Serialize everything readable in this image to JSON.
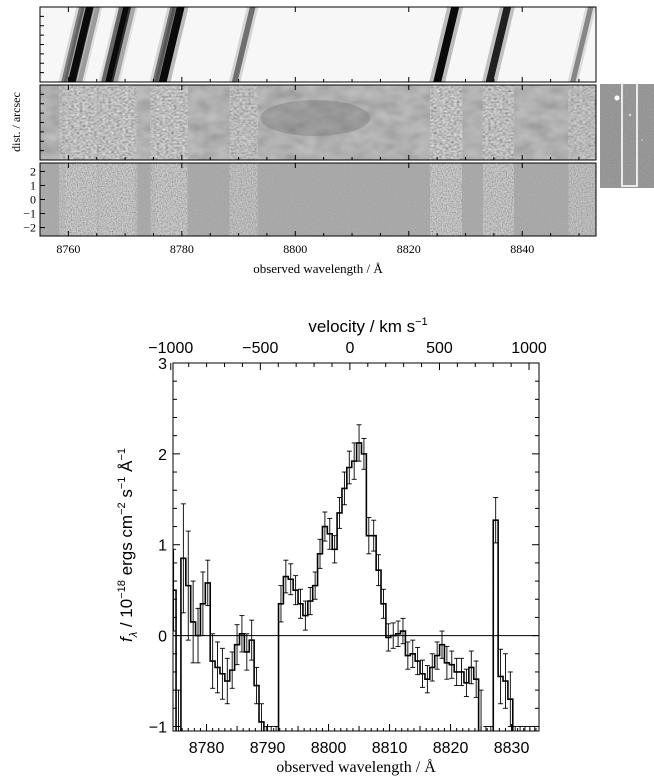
{
  "top_panel": {
    "ylabel": "dist. / arcsec",
    "xlabel": "observed wavelength / Å",
    "x_ticks": [
      8760,
      8780,
      8800,
      8820,
      8840
    ],
    "xlim": [
      8755,
      8853
    ],
    "residual_y_ticks": [
      2,
      1,
      0,
      -1,
      -2
    ],
    "residual_ylim": [
      -2.6,
      2.6
    ],
    "sky_lines": [
      {
        "center": 8760.8,
        "strength": 0.5
      },
      {
        "center": 8762.2,
        "strength": 1.0
      },
      {
        "center": 8763.6,
        "strength": 0.35
      },
      {
        "center": 8767.8,
        "strength": 0.45
      },
      {
        "center": 8768.8,
        "strength": 1.0
      },
      {
        "center": 8769.9,
        "strength": 0.3
      },
      {
        "center": 8776.9,
        "strength": 0.55
      },
      {
        "center": 8778.2,
        "strength": 1.0
      },
      {
        "center": 8790.9,
        "strength": 0.55
      },
      {
        "center": 8826.6,
        "strength": 1.0
      },
      {
        "center": 8835.8,
        "strength": 0.9
      },
      {
        "center": 8850.5,
        "strength": 0.45
      }
    ]
  },
  "chart_data": {
    "type": "line",
    "style": "step",
    "xlabel": "observed wavelength / Å",
    "ylabel_parts": {
      "f": "f",
      "sub": "λ",
      "rest": " / 10",
      "exp1": "−18",
      "mid": " ergs cm",
      "exp2": "−2",
      "mid2": " s",
      "exp3": "−1",
      "mid3": " Å",
      "exp4": "−1"
    },
    "top_xlabel_parts": {
      "text": "velocity / km s",
      "exp": "−1"
    },
    "xlim": [
      8774.5,
      8834.5
    ],
    "ylim": [
      -1.05,
      3.0
    ],
    "x_ticks": [
      8780,
      8790,
      8800,
      8810,
      8820,
      8830
    ],
    "y_ticks": [
      -1,
      0,
      1,
      2,
      3
    ],
    "velocity_ticks": [
      -1000,
      -500,
      0,
      500,
      1000
    ],
    "velocity_tick_labels": [
      "−1000",
      "−500",
      "0",
      "500",
      "1000"
    ],
    "velocity_reference_wavelength": 8803.5,
    "zero_line": 0,
    "x": [
      8774.6,
      8775.4,
      8776.2,
      8777.0,
      8777.8,
      8778.6,
      8779.4,
      8780.2,
      8781.0,
      8781.8,
      8782.6,
      8783.4,
      8784.2,
      8785.0,
      8785.8,
      8786.6,
      8787.4,
      8788.2,
      8789.0,
      8789.8,
      8790.6,
      8791.4,
      8792.2,
      8793.0,
      8793.8,
      8794.6,
      8795.4,
      8796.2,
      8797.0,
      8797.8,
      8798.6,
      8799.4,
      8800.2,
      8801.0,
      8801.8,
      8802.6,
      8803.4,
      8804.2,
      8805.0,
      8805.8,
      8806.6,
      8807.4,
      8808.2,
      8809.0,
      8809.8,
      8810.6,
      8811.4,
      8812.2,
      8813.0,
      8813.8,
      8814.6,
      8815.4,
      8816.2,
      8817.0,
      8817.8,
      8818.6,
      8819.4,
      8820.2,
      8821.0,
      8821.8,
      8822.6,
      8823.4,
      8824.2,
      8825.0,
      8825.8,
      8826.6,
      8827.4,
      8828.2,
      8829.0,
      8829.8,
      8830.6,
      8831.4,
      8832.2,
      8833.0,
      8833.8
    ],
    "y": [
      0.5,
      -1.1,
      0.85,
      0.55,
      0.15,
      0.0,
      0.35,
      0.58,
      -0.28,
      -0.35,
      -0.42,
      -0.5,
      -0.38,
      -0.1,
      0.02,
      -0.18,
      -0.05,
      -0.55,
      -0.95,
      -1.1,
      -1.1,
      -1.1,
      0.35,
      0.65,
      0.62,
      0.5,
      0.35,
      0.22,
      0.38,
      0.55,
      0.9,
      1.2,
      1.12,
      0.95,
      1.35,
      1.62,
      1.85,
      1.92,
      2.12,
      2.0,
      1.1,
      1.1,
      0.72,
      0.35,
      -0.02,
      0.0,
      0.02,
      0.05,
      -0.22,
      -0.2,
      -0.28,
      -0.42,
      -0.48,
      -0.35,
      -0.22,
      -0.1,
      -0.3,
      -0.32,
      -0.4,
      -0.4,
      -0.52,
      -0.35,
      -0.48,
      -1.1,
      -1.1,
      -1.1,
      1.27,
      -0.45,
      -0.5,
      -0.7,
      -1.1,
      -1.1,
      -1.1,
      -1.1,
      -1.1
    ],
    "yerr": [
      0.45,
      0.5,
      0.6,
      0.6,
      0.45,
      0.3,
      0.35,
      0.25,
      0.3,
      0.28,
      0.28,
      0.25,
      0.2,
      0.22,
      0.2,
      0.2,
      0.22,
      0.2,
      0.2,
      0.1,
      0.1,
      0.1,
      0.2,
      0.18,
      0.17,
      0.16,
      0.16,
      0.16,
      0.15,
      0.15,
      0.16,
      0.16,
      0.17,
      0.15,
      0.17,
      0.18,
      0.18,
      0.2,
      0.2,
      0.17,
      0.2,
      0.17,
      0.17,
      0.16,
      0.15,
      0.14,
      0.14,
      0.14,
      0.15,
      0.15,
      0.15,
      0.15,
      0.15,
      0.15,
      0.15,
      0.15,
      0.18,
      0.15,
      0.15,
      0.15,
      0.15,
      0.18,
      0.2,
      0.5,
      0.1,
      0.1,
      0.25,
      0.3,
      0.3,
      0.3,
      0.1,
      0.1,
      0.1,
      0.1,
      0.1
    ]
  }
}
